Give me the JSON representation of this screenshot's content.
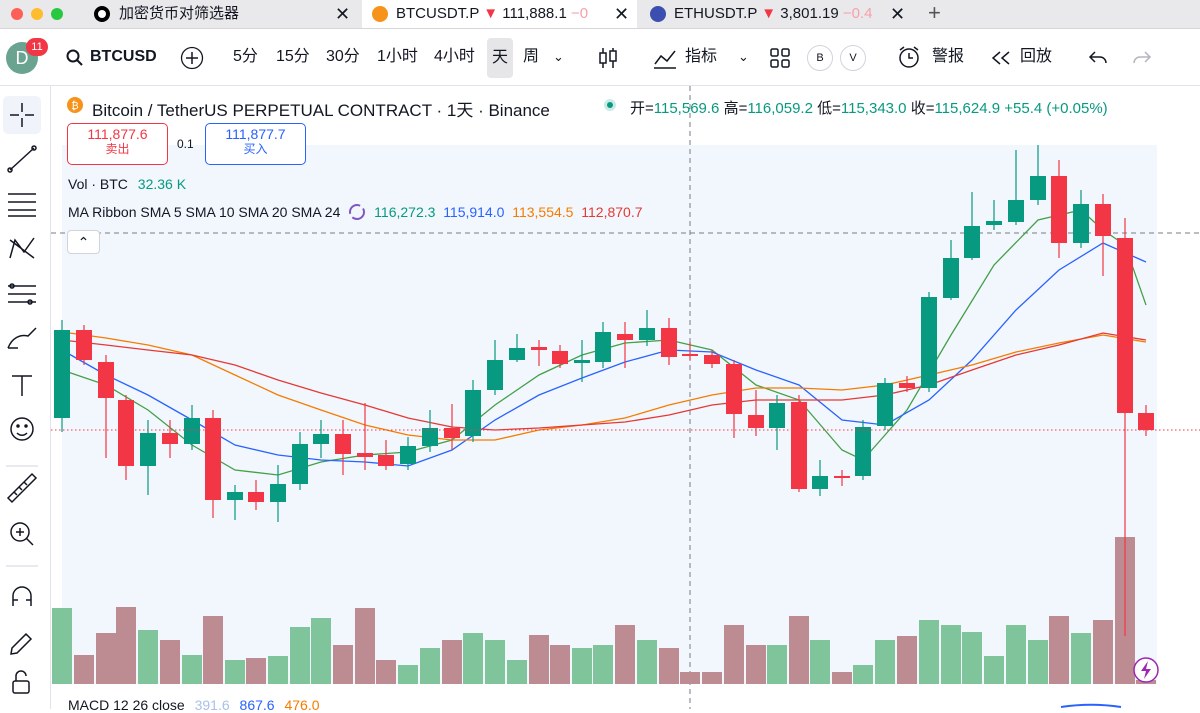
{
  "tabs": [
    {
      "title": "加密货币对筛选器"
    },
    {
      "title": "BTCUSDT.P",
      "price": "111,888.1",
      "change": "−0"
    },
    {
      "title": "ETHUSDT.P",
      "price": "3,801.19",
      "change": "−0.4"
    }
  ],
  "user": {
    "avatar": "D",
    "notifications": "11"
  },
  "toolbar": {
    "symbol": "BTCUSD",
    "intervals": [
      "5分",
      "15分",
      "30分",
      "1小时",
      "4小时",
      "天",
      "周"
    ],
    "indicators": "指标",
    "buttons": [
      "B",
      "V"
    ],
    "alert": "警报",
    "replay": "回放"
  },
  "legend": {
    "title": "Bitcoin / TetherUS PERPETUAL CONTRACT · 1天 · Binance",
    "ohlc": [
      {
        "label": "开=",
        "value": "115,569.6"
      },
      {
        "label": "高=",
        "value": "116,059.2"
      },
      {
        "label": "低=",
        "value": "115,343.0"
      },
      {
        "label": "收=",
        "value": "115,624.9"
      }
    ],
    "change": "+55.4 (+0.05%)"
  },
  "trade": {
    "sell": {
      "price": "111,877.6",
      "label": "卖出"
    },
    "spread": "0.1",
    "buy": {
      "price": "111,877.7",
      "label": "买入"
    }
  },
  "volume": {
    "label": "Vol · BTC",
    "value": "32.36 K"
  },
  "ma_ribbon": {
    "label": "MA Ribbon SMA 5 SMA 10 SMA 20 SMA 24",
    "values": [
      "116,272.3",
      "115,914.0",
      "113,554.5",
      "112,870.7"
    ]
  },
  "macd": {
    "label": "MACD 12 26 close",
    "values": [
      "391.6",
      "867.6",
      "476.0"
    ]
  }
}
